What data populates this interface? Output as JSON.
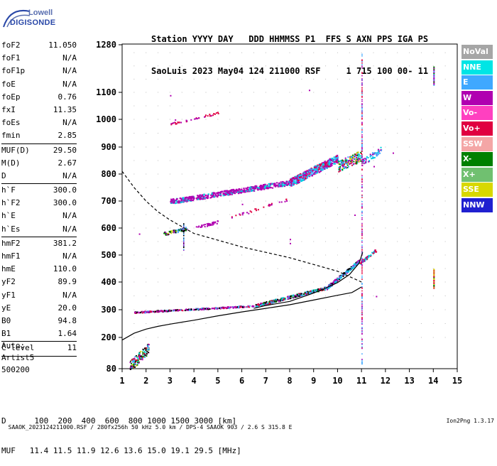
{
  "logo": {
    "line1": "Lowell",
    "line2": "DIGISONDE"
  },
  "header": {
    "line1": "Station YYYY DAY   DDD HHMMSS P1  FFS S AXN PPS IGA PS",
    "line2": "SaoLuis 2023 May04 124 211000 RSF     1 715 100 00- 11"
  },
  "params": [
    {
      "k": "foF2",
      "v": "11.050"
    },
    {
      "k": "foF1",
      "v": "N/A"
    },
    {
      "k": "foF1p",
      "v": "N/A"
    },
    {
      "k": "foE",
      "v": "N/A"
    },
    {
      "k": "foEp",
      "v": "0.76"
    },
    {
      "k": "fxI",
      "v": "11.35"
    },
    {
      "k": "foEs",
      "v": "N/A"
    },
    {
      "k": "fmin",
      "v": "2.85"
    },
    {
      "sep": true
    },
    {
      "k": "MUF(D)",
      "v": "29.50"
    },
    {
      "k": "M(D)",
      "v": "2.67"
    },
    {
      "k": "D",
      "v": "N/A"
    },
    {
      "sep": true
    },
    {
      "k": "h`F",
      "v": "300.0"
    },
    {
      "k": "h`F2",
      "v": "300.0"
    },
    {
      "k": "h`E",
      "v": "N/A"
    },
    {
      "k": "h`Es",
      "v": "N/A"
    },
    {
      "sep": true
    },
    {
      "k": "hmF2",
      "v": "381.2"
    },
    {
      "k": "hmF1",
      "v": "N/A"
    },
    {
      "k": "hmE",
      "v": "110.0"
    },
    {
      "k": "yF2",
      "v": "89.9"
    },
    {
      "k": "yF1",
      "v": "N/A"
    },
    {
      "k": "yE",
      "v": "20.0"
    },
    {
      "k": "B0",
      "v": "94.8"
    },
    {
      "k": "B1",
      "v": "1.64"
    },
    {
      "sep": true
    },
    {
      "k": "C-level",
      "v": "11"
    },
    {
      "sep": true
    }
  ],
  "auto": {
    "line1": "Auto:",
    "line2": "Artist5",
    "line3": "500200"
  },
  "legend": [
    {
      "label": "NoVal",
      "color": "#a6a6a6"
    },
    {
      "label": "NNE",
      "color": "#00e5e5"
    },
    {
      "label": "E",
      "color": "#3fa8ff"
    },
    {
      "label": "W",
      "color": "#b000b0"
    },
    {
      "label": "Vo-",
      "color": "#ff40c0"
    },
    {
      "label": "Vo+",
      "color": "#e00040"
    },
    {
      "label": "SSW",
      "color": "#f4a6a6"
    },
    {
      "label": "X-",
      "color": "#008000"
    },
    {
      "label": "X+",
      "color": "#70c070"
    },
    {
      "label": "SSE",
      "color": "#d8d800"
    },
    {
      "label": "NNW",
      "color": "#2020d0"
    }
  ],
  "footer": {
    "line1": "D      100  200  400  600  800 1000 1500 3000 [km]",
    "line2": "MUF   11.4 11.5 11.9 12.6 13.6 15.0 19.1 29.5 [MHz]"
  },
  "bottom": {
    "left": "SAAOK_2023124211000.RSF / 280fx256h 50 kHz 5.0 km / DPS-4 SAAOK 903 / 2.6 S 315.8 E",
    "right": "Ion2Png 1.3.17"
  },
  "chart_data": {
    "type": "scatter",
    "x_ticks": [
      1,
      2,
      3,
      4,
      5,
      6,
      7,
      8,
      9,
      10,
      11,
      12,
      13,
      14,
      15
    ],
    "y_ticks": [
      80,
      200,
      300,
      400,
      500,
      600,
      700,
      800,
      900,
      1000,
      1100,
      1280
    ],
    "xlim": [
      1,
      15
    ],
    "ylim": [
      80,
      1280
    ],
    "y_axis_nonlinear": true,
    "grid": true,
    "curves": [
      {
        "style": "solid",
        "points": [
          [
            1,
            190
          ],
          [
            1.5,
            215
          ],
          [
            2,
            230
          ],
          [
            2.5,
            240
          ],
          [
            3,
            248
          ],
          [
            4,
            262
          ],
          [
            5,
            278
          ],
          [
            6,
            292
          ],
          [
            7,
            305
          ],
          [
            8,
            318
          ],
          [
            9,
            335
          ],
          [
            10,
            352
          ],
          [
            10.6,
            362
          ],
          [
            11,
            382
          ]
        ]
      },
      {
        "style": "solid",
        "points": [
          [
            6.5,
            305
          ],
          [
            7,
            315
          ],
          [
            8,
            330
          ],
          [
            9,
            360
          ],
          [
            9.5,
            378
          ],
          [
            10,
            398
          ],
          [
            10.5,
            428
          ],
          [
            10.9,
            470
          ],
          [
            11.05,
            510
          ]
        ]
      },
      {
        "style": "dashed",
        "points": [
          [
            1,
            810
          ],
          [
            1.5,
            750
          ],
          [
            2,
            700
          ],
          [
            2.5,
            660
          ],
          [
            3,
            630
          ],
          [
            3.5,
            605
          ],
          [
            4,
            580
          ],
          [
            5,
            555
          ],
          [
            6,
            530
          ],
          [
            7,
            510
          ],
          [
            8,
            490
          ],
          [
            9,
            465
          ],
          [
            10,
            440
          ],
          [
            10.5,
            420
          ],
          [
            11,
            400
          ]
        ]
      }
    ],
    "trace_groups": [
      {
        "direction": "W",
        "x0": 3.0,
        "x1": 11.0,
        "y0": 700,
        "y1": 860
      },
      {
        "direction": "W",
        "x0": 1.5,
        "x1": 10.5,
        "y0": 292,
        "y1": 420
      },
      {
        "direction": "W",
        "x0": 3.0,
        "x1": 5.0,
        "y0": 985,
        "y1": 1025
      }
    ]
  }
}
